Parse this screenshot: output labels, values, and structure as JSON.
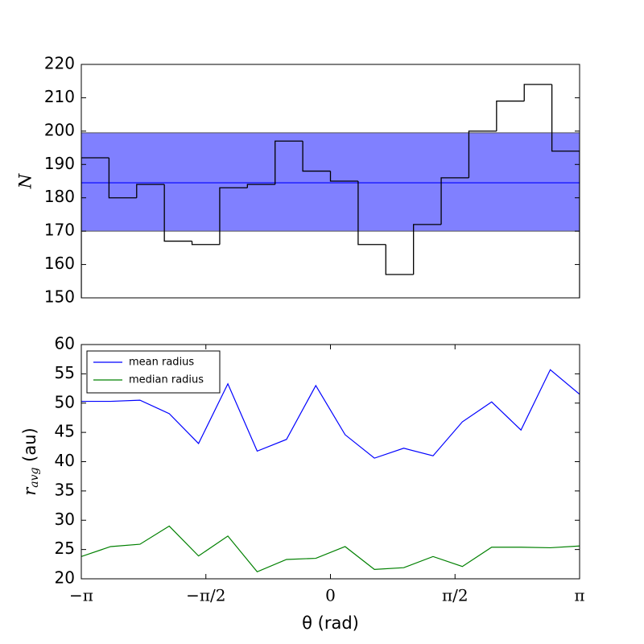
{
  "chart_data": [
    {
      "type": "histogram",
      "ylabel": "N",
      "bins": [
        -3.1416,
        -2.7925,
        -2.4435,
        -2.0944,
        -1.7453,
        -1.3963,
        -1.0472,
        -0.6981,
        -0.3491,
        0,
        0.3491,
        0.6981,
        1.0472,
        1.3963,
        1.7453,
        2.0944,
        2.4435,
        2.7925,
        3.1416
      ],
      "values": [
        192,
        180,
        184,
        167,
        166,
        183,
        184,
        197,
        188,
        185,
        166,
        157,
        172,
        186,
        200,
        209,
        214,
        194
      ],
      "color": "#000000",
      "band": [
        170,
        199.5
      ],
      "band_color": "#8080ff",
      "mean": 184.5,
      "mean_color": "#0000ff",
      "xlim": [
        -3.1416,
        3.1416
      ],
      "ylim": [
        150,
        220
      ],
      "yticks": [
        150,
        160,
        170,
        180,
        190,
        200,
        210,
        220
      ]
    },
    {
      "type": "line",
      "ylabel": {
        "symbol": "r",
        "subscript": "avg",
        "unit": "(au)"
      },
      "xlabel": "θ (rad)",
      "x": [
        -3.1416,
        -2.772,
        -2.4024,
        -2.0328,
        -1.6632,
        -1.2936,
        -0.924,
        -0.5544,
        -0.1848,
        0.1848,
        0.5544,
        0.924,
        1.2936,
        1.6632,
        2.0328,
        2.4024,
        2.772,
        3.1416
      ],
      "series": [
        {
          "name": "mean radius",
          "color": "#0000ff",
          "values": [
            50.3,
            50.3,
            50.5,
            48.2,
            43.1,
            53.3,
            41.8,
            43.8,
            53.0,
            44.6,
            40.6,
            42.3,
            41.0,
            46.8,
            50.2,
            45.4,
            55.7,
            51.5
          ]
        },
        {
          "name": "median radius",
          "color": "#008000",
          "values": [
            23.8,
            25.5,
            25.9,
            29.0,
            23.9,
            27.3,
            21.2,
            23.3,
            23.5,
            25.5,
            21.6,
            21.9,
            23.8,
            22.1,
            25.4,
            25.4,
            25.3,
            25.6
          ]
        }
      ],
      "legend": "upper left",
      "xlim": [
        -3.1416,
        3.1416
      ],
      "xticks": [
        {
          "value": -3.1416,
          "label": "−π"
        },
        {
          "value": -1.5708,
          "label": "−π/2"
        },
        0,
        {
          "value": 1.5708,
          "label": "π/2"
        },
        {
          "value": 3.1416,
          "label": "π"
        }
      ],
      "ylim": [
        20,
        60
      ],
      "yticks": [
        20,
        25,
        30,
        35,
        40,
        45,
        50,
        55,
        60
      ]
    }
  ]
}
